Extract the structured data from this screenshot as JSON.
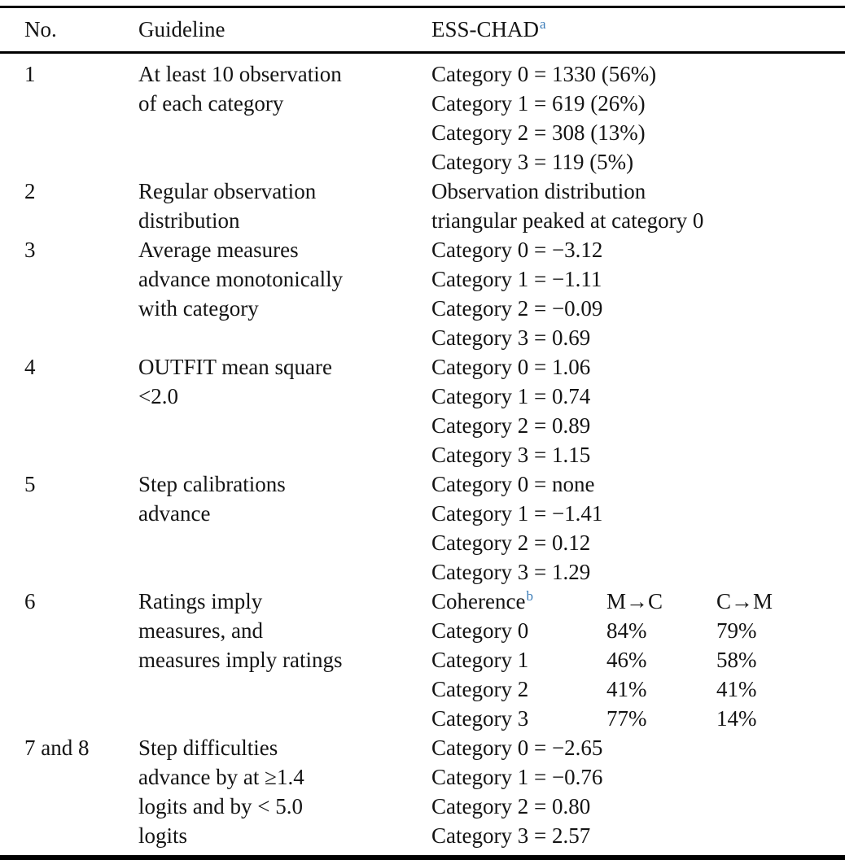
{
  "colors": {
    "footnote_link": "#3b7cb8",
    "rule": "#000000",
    "text": "#141414"
  },
  "table": {
    "header": {
      "no": "No.",
      "guideline": "Guideline",
      "ess_chad": "ESS-CHAD",
      "ess_chad_footnote": "a"
    },
    "rows": [
      {
        "no": "1",
        "guideline_lines": [
          "At least 10 observation",
          "of each category"
        ],
        "value_lines": [
          "Category 0 = 1330 (56%)",
          "Category 1 = 619 (26%)",
          "Category 2 = 308 (13%)",
          "Category 3 = 119 (5%)"
        ]
      },
      {
        "no": "2",
        "guideline_lines": [
          "Regular observation",
          "distribution"
        ],
        "value_lines": [
          "Observation distribution",
          "triangular peaked at category 0"
        ]
      },
      {
        "no": "3",
        "guideline_lines": [
          "Average measures",
          "advance monotonically",
          "with category"
        ],
        "value_lines": [
          "Category 0 = −3.12",
          "Category 1 = −1.11",
          "Category 2 = −0.09",
          "Category 3 = 0.69"
        ]
      },
      {
        "no": "4",
        "guideline_lines": [
          "OUTFIT mean square",
          "<2.0"
        ],
        "value_lines": [
          "Category 0 = 1.06",
          "Category 1 = 0.74",
          "Category 2 = 0.89",
          "Category 3 = 1.15"
        ]
      },
      {
        "no": "5",
        "guideline_lines": [
          "Step calibrations",
          "advance"
        ],
        "value_lines": [
          "Category 0 = none",
          "Category 1 = −1.41",
          "Category 2 = 0.12",
          "Category 3 = 1.29"
        ]
      },
      {
        "no": "6",
        "guideline_lines": [
          "Ratings imply",
          "measures, and",
          "measures imply ratings"
        ],
        "subtable": {
          "header": {
            "label": "Coherence",
            "footnote": "b",
            "col1": "M→C",
            "col2": "C→M"
          },
          "rows": [
            {
              "label": "Category 0",
              "col1": "84%",
              "col2": "79%"
            },
            {
              "label": "Category 1",
              "col1": "46%",
              "col2": "58%"
            },
            {
              "label": "Category 2",
              "col1": "41%",
              "col2": "41%"
            },
            {
              "label": "Category 3",
              "col1": "77%",
              "col2": "14%"
            }
          ]
        }
      },
      {
        "no": "7 and 8",
        "guideline_lines": [
          "Step difficulties",
          "advance by at ≥1.4",
          "logits and by < 5.0",
          "logits"
        ],
        "value_lines": [
          "Category 0 = −2.65",
          "Category 1 = −0.76",
          "Category 2 = 0.80",
          "Category 3 = 2.57"
        ]
      }
    ]
  }
}
